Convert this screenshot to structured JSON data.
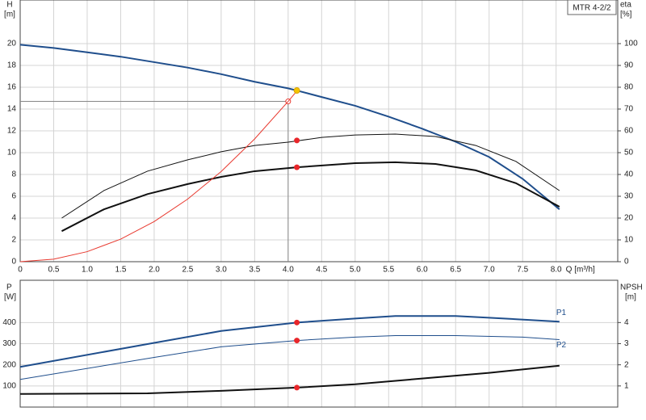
{
  "chart_data": [
    {
      "type": "line",
      "title": "MTR 4-2/2",
      "x_label": "Q [m³/h]",
      "y_label": "H",
      "y_unit": "[m]",
      "y2_label": "eta",
      "y2_unit": "[%]",
      "xlim": [
        0,
        8.92
      ],
      "ylim": [
        0,
        24
      ],
      "y2lim": [
        0,
        120
      ],
      "grid": true,
      "xticks": [
        0,
        0.5,
        {
          "value": 1,
          "label": "1.0"
        },
        1.5,
        {
          "value": 2,
          "label": "2.0"
        },
        2.5,
        {
          "value": 3,
          "label": "3.0"
        },
        3.5,
        {
          "value": 4,
          "label": "4.0"
        },
        4.5,
        {
          "value": 5,
          "label": "5.0"
        },
        5.5,
        {
          "value": 6,
          "label": "6.0"
        },
        6.5,
        {
          "value": 7,
          "label": "7.0"
        },
        7.5,
        {
          "value": 8,
          "label": "8.0"
        }
      ],
      "yticks": [
        0,
        2,
        4,
        6,
        8,
        10,
        12,
        14,
        16,
        18,
        20
      ],
      "y2ticks": [
        0,
        10,
        20,
        30,
        40,
        50,
        60,
        70,
        80,
        90,
        100
      ],
      "series": [
        {
          "color": "#1f4e8c",
          "style": "thick",
          "x": [
            0,
            0.5,
            1,
            1.5,
            2,
            2.5,
            3,
            3.5,
            4,
            4.13,
            4.5,
            5,
            5.5,
            6,
            6.5,
            7,
            7.5,
            8.05
          ],
          "values": [
            19.9,
            19.6,
            19.2,
            18.8,
            18.3,
            17.8,
            17.2,
            16.5,
            15.9,
            15.7,
            15.1,
            14.3,
            13.3,
            12.2,
            11,
            9.6,
            7.6,
            4.8
          ]
        },
        {
          "color": "#111111",
          "style": "thin",
          "axis": "y2",
          "x": [
            0.62,
            1.25,
            1.9,
            2.5,
            3,
            3.5,
            4,
            4.5,
            5,
            5.6,
            6.2,
            6.8,
            7.4,
            8.05
          ],
          "values": [
            20,
            32.6,
            41.5,
            46.7,
            50.4,
            53.3,
            54.8,
            57,
            58.1,
            58.5,
            57.4,
            53.3,
            46,
            32.6
          ]
        },
        {
          "color": "#111111",
          "style": "thick",
          "axis": "y2",
          "x": [
            0.62,
            1.25,
            1.9,
            2.5,
            3,
            3.5,
            4.13,
            5,
            5.6,
            6.2,
            6.8,
            7.4,
            8.05
          ],
          "values": [
            14,
            24,
            31,
            35.6,
            38.9,
            41.5,
            43.3,
            45.2,
            45.6,
            44.8,
            41.9,
            36,
            25.2
          ]
        },
        {
          "color": "#e8392f",
          "style": "thin",
          "x": [
            0,
            0.5,
            1,
            1.5,
            2,
            2.5,
            3,
            3.5,
            4,
            4.15
          ],
          "values": [
            0,
            0.23,
            0.92,
            2.07,
            3.68,
            5.74,
            8.27,
            11.26,
            14.7,
            15.8
          ]
        }
      ],
      "reference": {
        "x": 4,
        "y": 14.7
      },
      "markers": [
        {
          "x": 4.13,
          "y": 15.7,
          "color": "#f5c400"
        },
        {
          "x": 4.13,
          "y": 55.6,
          "color": "#e8262a",
          "axis": "y2"
        },
        {
          "x": 4.13,
          "y": 43.3,
          "color": "#e8262a",
          "axis": "y2"
        }
      ]
    },
    {
      "type": "line",
      "y_label": "P",
      "y_unit": "[W]",
      "y2_label": "NPSH",
      "y2_unit": "[m]",
      "xlim": [
        0,
        8.92
      ],
      "ylim": [
        0,
        600
      ],
      "y2lim": [
        0,
        6
      ],
      "grid": true,
      "yticks": [
        100,
        200,
        300,
        400
      ],
      "y2ticks": [
        1,
        2,
        3,
        4
      ],
      "series": [
        {
          "name": "P1",
          "color": "#1f4e8c",
          "style": "thick",
          "x": [
            0,
            2,
            3,
            4.13,
            5,
            5.6,
            6.5,
            7,
            8.05
          ],
          "values": [
            190,
            304,
            360,
            400,
            419,
            431,
            431,
            423,
            404
          ]
        },
        {
          "name": "P2",
          "color": "#1f4e8c",
          "style": "thin",
          "x": [
            0,
            2,
            3,
            4.13,
            5,
            5.6,
            6.5,
            7.5,
            8.05
          ],
          "values": [
            131,
            235,
            285,
            315,
            331,
            338,
            338,
            331,
            319
          ]
        },
        {
          "color": "#111111",
          "style": "thick",
          "axis": "y2",
          "x": [
            0,
            1.9,
            3,
            4.13,
            5,
            6,
            7,
            8.05
          ],
          "values": [
            0.62,
            0.65,
            0.77,
            0.92,
            1.08,
            1.35,
            1.62,
            1.96
          ]
        }
      ],
      "markers": [
        {
          "x": 4.13,
          "y": 400,
          "color": "#e8262a"
        },
        {
          "x": 4.13,
          "y": 315,
          "color": "#e8262a"
        },
        {
          "x": 4.13,
          "y": 0.92,
          "color": "#e8262a",
          "axis": "y2"
        }
      ]
    }
  ]
}
